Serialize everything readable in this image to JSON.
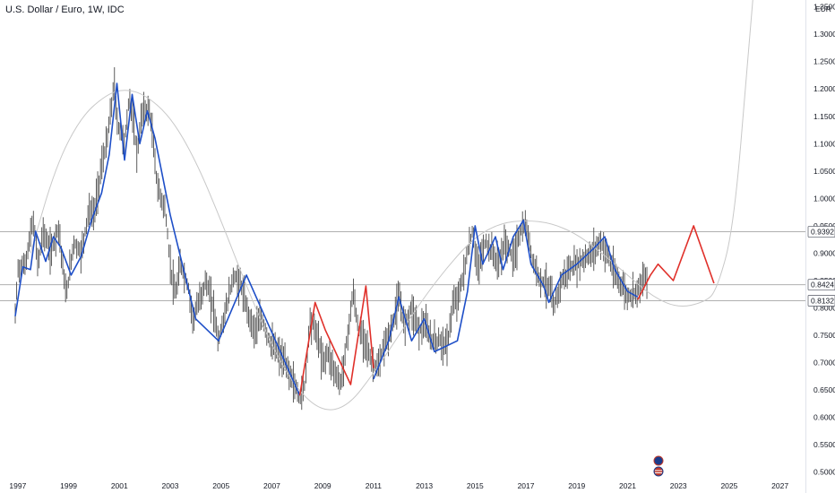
{
  "header": {
    "symbol_title": "U.S. Dollar / Euro, 1W, IDC",
    "currency": "EUR"
  },
  "colors": {
    "candle": "#4a4a4a",
    "wave_blue": "#1e4fc8",
    "wave_red": "#e0302a",
    "arc": "#c8c8c8",
    "level_line": "#b0b0b0",
    "axis_text": "#131722"
  },
  "chart_data": {
    "type": "line",
    "title": "U.S. Dollar / Euro, 1W, IDC",
    "xlabel": "",
    "ylabel": "EUR",
    "xlim": [
      1996.3,
      2028.0
    ],
    "ylim": [
      0.475,
      1.3625
    ],
    "x_ticks": [
      "1997",
      "1999",
      "2001",
      "2003",
      "2005",
      "2007",
      "2009",
      "2011",
      "2013",
      "2015",
      "2017",
      "2019",
      "2021",
      "2023",
      "2025",
      "2027"
    ],
    "y_ticks": [
      "1.3500",
      "1.3000",
      "1.2500",
      "1.2000",
      "1.1500",
      "1.1000",
      "1.0500",
      "1.0000",
      "0.9500",
      "0.9000",
      "0.8500",
      "0.8000",
      "0.7500",
      "0.7000",
      "0.6500",
      "0.6000",
      "0.5500",
      "0.5000"
    ],
    "levels": [
      {
        "value": 0.9392,
        "label": "0.9392"
      },
      {
        "value": 0.8424,
        "label": "0.8424"
      },
      {
        "value": 0.8132,
        "label": "0.8132"
      }
    ],
    "price_series": {
      "name": "",
      "x": [
        1996.9,
        1997.0,
        1997.3,
        1997.6,
        1997.8,
        1998.0,
        1998.3,
        1998.6,
        1998.9,
        1999.2,
        1999.5,
        1999.8,
        2000.0,
        2000.3,
        2000.5,
        2000.8,
        2000.9,
        2001.2,
        2001.4,
        2001.7,
        2001.9,
        2002.2,
        2002.5,
        2002.8,
        2003.0,
        2003.2,
        2003.4,
        2003.7,
        2003.9,
        2004.2,
        2004.4,
        2004.7,
        2004.9,
        2005.2,
        2005.5,
        2005.8,
        2006.0,
        2006.3,
        2006.6,
        2006.9,
        2007.2,
        2007.5,
        2007.8,
        2008.1,
        2008.3,
        2008.5,
        2008.8,
        2009.0,
        2009.2,
        2009.5,
        2009.7,
        2009.9,
        2010.2,
        2010.4,
        2010.7,
        2010.9,
        2011.2,
        2011.4,
        2011.7,
        2012.0,
        2012.2,
        2012.5,
        2012.8,
        2013.0,
        2013.3,
        2013.6,
        2013.9,
        2014.1,
        2014.4,
        2014.7,
        2014.9,
        2015.1,
        2015.4,
        2015.7,
        2015.9,
        2016.2,
        2016.5,
        2016.8,
        2017.0,
        2017.3,
        2017.6,
        2017.9,
        2018.1,
        2018.4,
        2018.7,
        2019.0,
        2019.3,
        2019.6,
        2019.9,
        2020.2,
        2020.5,
        2020.8,
        2021.0,
        2021.3,
        2021.6,
        2021.8
      ],
      "y": [
        0.785,
        0.87,
        0.88,
        0.96,
        0.88,
        0.94,
        0.9,
        0.95,
        0.82,
        0.92,
        0.9,
        0.98,
        0.97,
        1.06,
        1.1,
        1.21,
        1.14,
        1.1,
        1.19,
        1.08,
        1.16,
        1.16,
        1.02,
        0.98,
        0.88,
        0.82,
        0.88,
        0.84,
        0.78,
        0.82,
        0.85,
        0.8,
        0.74,
        0.8,
        0.86,
        0.84,
        0.8,
        0.76,
        0.78,
        0.74,
        0.72,
        0.7,
        0.67,
        0.635,
        0.66,
        0.78,
        0.75,
        0.7,
        0.72,
        0.68,
        0.66,
        0.72,
        0.83,
        0.76,
        0.74,
        0.7,
        0.69,
        0.73,
        0.76,
        0.82,
        0.77,
        0.8,
        0.76,
        0.77,
        0.74,
        0.74,
        0.73,
        0.8,
        0.83,
        0.9,
        0.94,
        0.87,
        0.92,
        0.9,
        0.88,
        0.92,
        0.89,
        0.94,
        0.95,
        0.88,
        0.85,
        0.84,
        0.8,
        0.85,
        0.87,
        0.88,
        0.89,
        0.9,
        0.92,
        0.9,
        0.86,
        0.84,
        0.82,
        0.83,
        0.85,
        0.86
      ]
    },
    "wave_blue_segments": [
      {
        "x": [
          1996.9,
          1997.2,
          1997.5,
          1997.7,
          1998.1,
          1998.4,
          1998.7,
          1999.1,
          1999.5,
          1999.9,
          2000.3,
          2000.6,
          2000.9,
          2001.2,
          2001.5,
          2001.8,
          2002.1,
          2002.4,
          2003.0,
          2004.0,
          2004.9,
          2006.0,
          2008.1
        ],
        "y": [
          0.785,
          0.875,
          0.87,
          0.94,
          0.885,
          0.93,
          0.91,
          0.86,
          0.895,
          0.96,
          1.01,
          1.08,
          1.21,
          1.07,
          1.19,
          1.1,
          1.16,
          1.11,
          0.97,
          0.78,
          0.74,
          0.86,
          0.64
        ]
      },
      {
        "x": [
          2011.0,
          2011.6,
          2012.0,
          2012.5,
          2013.0,
          2013.4,
          2014.3,
          2014.7,
          2015.0,
          2015.3,
          2015.8,
          2016.1,
          2016.5,
          2016.9,
          2017.2,
          2017.7,
          2017.9,
          2018.4,
          2019.0,
          2019.7,
          2020.1,
          2020.5,
          2021.0,
          2021.4
        ],
        "y": [
          0.67,
          0.74,
          0.82,
          0.74,
          0.78,
          0.72,
          0.74,
          0.83,
          0.95,
          0.88,
          0.93,
          0.87,
          0.93,
          0.96,
          0.88,
          0.84,
          0.81,
          0.86,
          0.88,
          0.91,
          0.93,
          0.87,
          0.83,
          0.82
        ]
      }
    ],
    "wave_red_segments": [
      {
        "x": [
          2008.1,
          2008.7,
          2009.1,
          2009.6,
          2010.1,
          2010.7,
          2011.0
        ],
        "y": [
          0.64,
          0.81,
          0.76,
          0.71,
          0.66,
          0.84,
          0.69
        ]
      },
      {
        "x": [
          2021.4,
          2021.9,
          2022.2,
          2022.8,
          2023.6,
          2024.4
        ],
        "y": [
          0.815,
          0.86,
          0.88,
          0.85,
          0.95,
          0.845
        ]
      }
    ],
    "arc_curve": {
      "x": [
        1997.5,
        1998.5,
        1999.5,
        2000.5,
        2001.2,
        2002.0,
        2003.0,
        2004.0,
        2005.0,
        2006.0,
        2007.0,
        2008.0,
        2009.0,
        2010.0,
        2011.0,
        2012.0,
        2013.0,
        2014.0,
        2015.0,
        2016.0,
        2017.0,
        2018.0,
        2019.0,
        2020.0,
        2021.0,
        2022.0,
        2023.0,
        2024.0,
        2024.5,
        2025.2,
        2025.8,
        2026.5
      ],
      "y": [
        0.9,
        1.06,
        1.15,
        1.19,
        1.2,
        1.19,
        1.15,
        1.07,
        0.96,
        0.84,
        0.73,
        0.65,
        0.61,
        0.62,
        0.68,
        0.75,
        0.82,
        0.88,
        0.93,
        0.955,
        0.96,
        0.955,
        0.935,
        0.9,
        0.86,
        0.82,
        0.8,
        0.81,
        0.83,
        0.95,
        1.3,
        1.67
      ]
    },
    "arrow_head": {
      "x": 2026.5,
      "y": 1.67
    }
  }
}
